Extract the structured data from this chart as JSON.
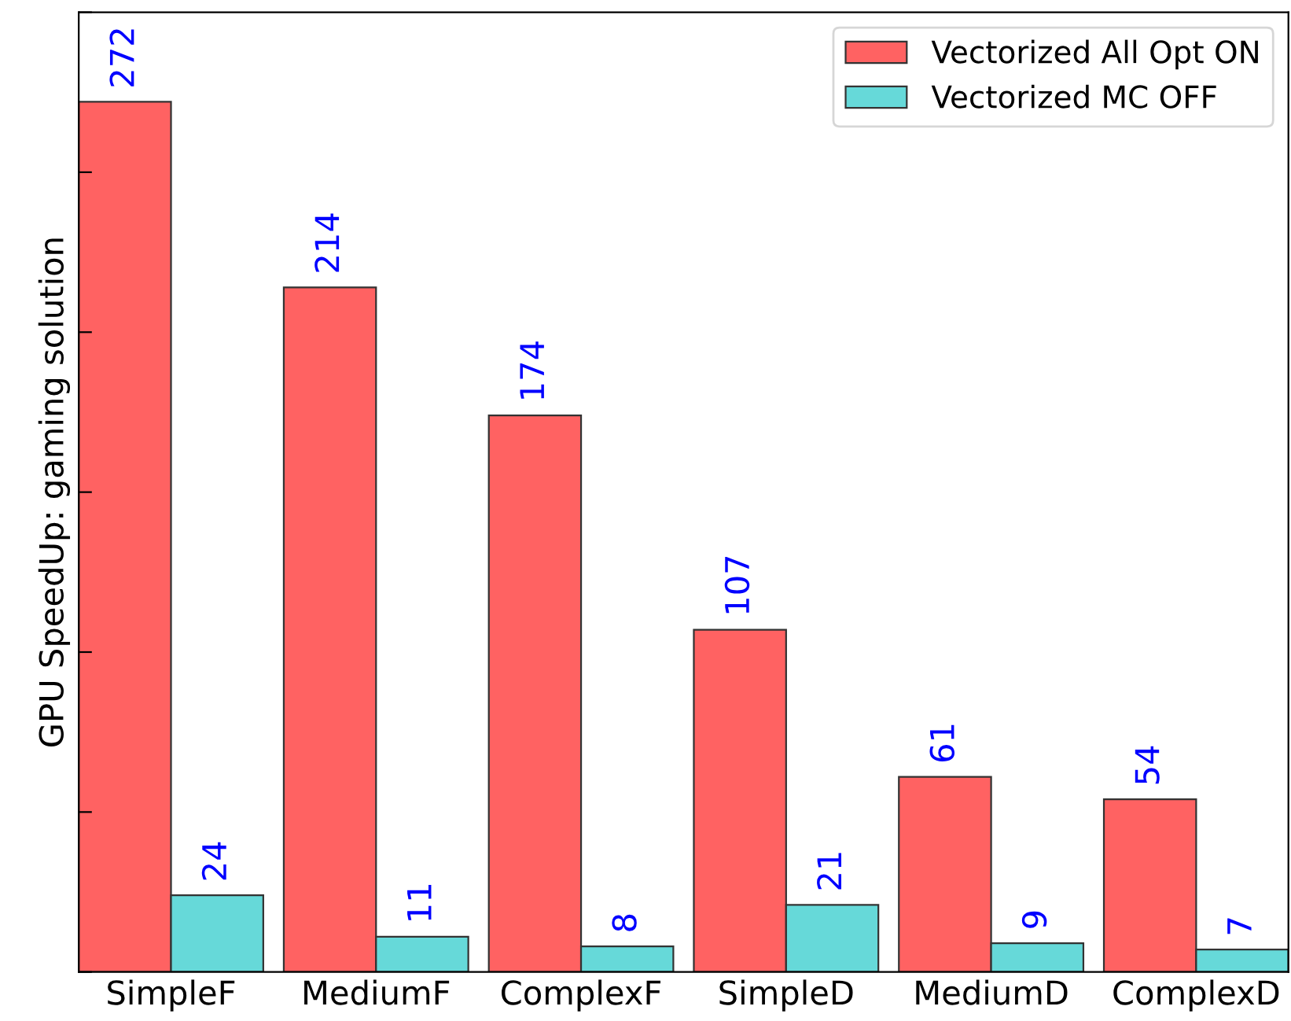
{
  "chart_data": {
    "type": "bar",
    "ylabel": "GPU SpeedUp: gaming solution",
    "categories": [
      "SimpleF",
      "MediumF",
      "ComplexF",
      "SimpleD",
      "MediumD",
      "ComplexD"
    ],
    "series": [
      {
        "name": "Vectorized All Opt ON",
        "color": "#ff6262",
        "values": [
          272,
          214,
          174,
          107,
          61,
          54
        ]
      },
      {
        "name": "Vectorized MC OFF",
        "color": "#66d9d9",
        "values": [
          24,
          11,
          8,
          21,
          9,
          7
        ]
      }
    ],
    "ylim": [
      0,
      300
    ],
    "yticks": [
      {
        "value": 0,
        "label": null
      },
      {
        "value": 50,
        "label": null
      },
      {
        "value": 100,
        "label": null
      },
      {
        "value": 150,
        "label": null
      },
      {
        "value": 200,
        "label": null
      },
      {
        "value": 250,
        "label": null
      },
      {
        "value": 300,
        "label": null
      }
    ],
    "tick_labels": "x",
    "data_labels": true,
    "legend": "top right",
    "grid": false
  }
}
